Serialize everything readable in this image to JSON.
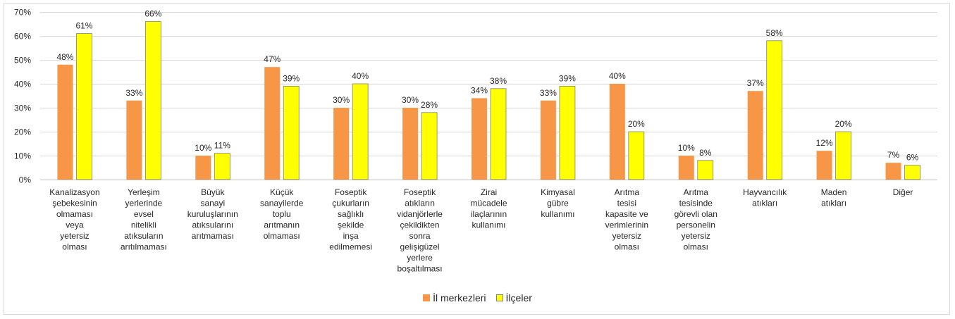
{
  "chart_data": {
    "type": "bar",
    "ylim": [
      0,
      70
    ],
    "yticks": [
      "0%",
      "10%",
      "20%",
      "30%",
      "40%",
      "50%",
      "60%",
      "70%"
    ],
    "grid": true,
    "legend_position": "bottom",
    "categories": [
      "Kanalizasyon şebekesinin olmaması veya yetersiz olması",
      "Yerleşim yerlerinde evsel nitelikli atıksuların arıtılmaması",
      "Büyük sanayi kuruluşlarının atıksularını arıtmaması",
      "Küçük sanayilerde toplu arıtmanın olmaması",
      "Foseptik çukurların sağlıklı şekilde inşa edilmemesi",
      "Foseptik atıkların vidanjörlerle çekildikten sonra gelişigüzel yerlere boşaltılması",
      "Zirai mücadele ilaçlarının kullanımı",
      "Kimyasal gübre kullanımı",
      "Arıtma tesisi kapasite ve verimlerinin yetersiz olması",
      "Arıtma tesisinde görevli olan personelin yetersiz olması",
      "Hayvancılık atıkları",
      "Maden atıkları",
      "Diğer"
    ],
    "category_lines": [
      [
        "Kanalizasyon",
        "şebekesinin",
        "olmaması",
        "veya",
        "yetersiz",
        "olması"
      ],
      [
        "Yerleşim",
        "yerlerinde",
        "evsel",
        "nitelikli",
        "atıksuların",
        "arıtılmaması"
      ],
      [
        "Büyük",
        "sanayi",
        "kuruluşlarının",
        "atıksularını",
        "arıtmaması"
      ],
      [
        "Küçük",
        "sanayilerde",
        "toplu",
        "arıtmanın",
        "olmaması"
      ],
      [
        "Foseptik",
        "çukurların",
        "sağlıklı",
        "şekilde",
        "inşa",
        "edilmemesi"
      ],
      [
        "Foseptik",
        "atıkların",
        "vidanjörlerle",
        "çekildikten",
        "sonra",
        "gelişigüzel",
        "yerlere",
        "boşaltılması"
      ],
      [
        "Zirai",
        "mücadele",
        "ilaçlarının",
        "kullanımı"
      ],
      [
        "Kimyasal",
        "gübre",
        "kullanımı"
      ],
      [
        "Arıtma",
        "tesisi",
        "kapasite ve",
        "verimlerinin",
        "yetersiz",
        "olması"
      ],
      [
        "Arıtma",
        "tesisinde",
        "görevli olan",
        "personelin",
        "yetersiz",
        "olması"
      ],
      [
        "Hayvancılık",
        "atıkları"
      ],
      [
        "Maden",
        "atıkları"
      ],
      [
        "Diğer"
      ]
    ],
    "series": [
      {
        "name": "İl merkezleri",
        "color": "#f79646",
        "values": [
          48,
          33,
          10,
          47,
          30,
          30,
          34,
          33,
          40,
          10,
          37,
          12,
          7
        ],
        "labels": [
          "48%",
          "33%",
          "10%",
          "47%",
          "30%",
          "30%",
          "34%",
          "33%",
          "40%",
          "10%",
          "37%",
          "12%",
          "7%"
        ]
      },
      {
        "name": "İlçeler",
        "color": "#ffff00",
        "values": [
          61,
          66,
          11,
          39,
          40,
          28,
          38,
          39,
          20,
          8,
          58,
          20,
          6
        ],
        "labels": [
          "61%",
          "66%",
          "11%",
          "39%",
          "40%",
          "28%",
          "38%",
          "39%",
          "20%",
          "8%",
          "58%",
          "20%",
          "6%"
        ]
      }
    ],
    "colors": {
      "grid": "#d9d9d9",
      "axis": "#bfbfbf",
      "bar_outline": "#7f7f7f",
      "text": "#262626"
    }
  }
}
